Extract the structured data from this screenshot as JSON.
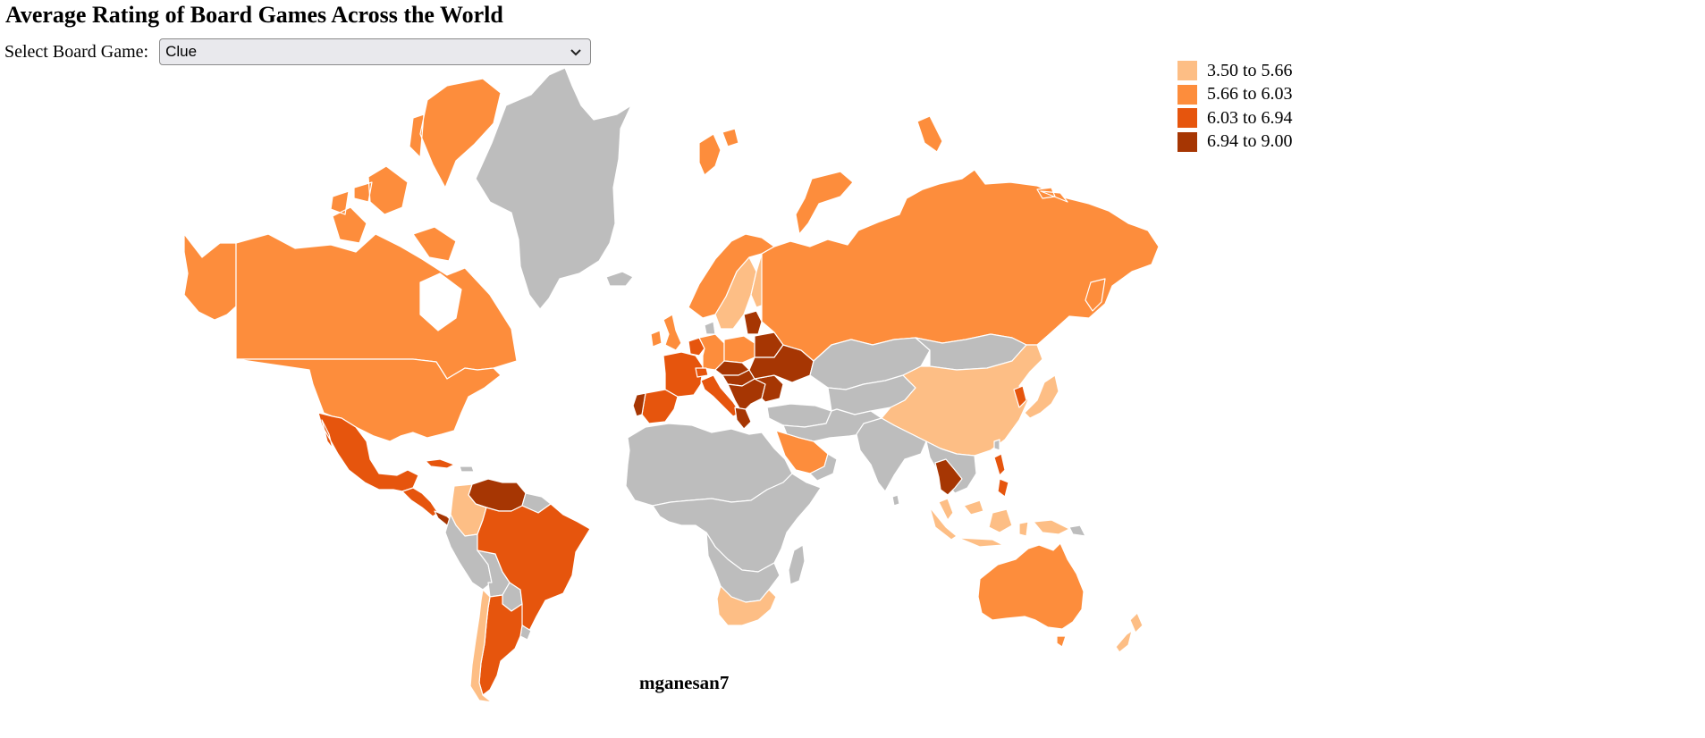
{
  "page": {
    "title": "Average Rating of Board Games Across the World",
    "select_label": "Select Board Game:",
    "selected_game": "Clue",
    "credit": "mganesan7"
  },
  "legend": [
    {
      "label": "3.50 to 5.66",
      "color": "#fdbe85"
    },
    {
      "label": "5.66 to 6.03",
      "color": "#fd8d3c"
    },
    {
      "label": "6.03 to 6.94",
      "color": "#e6550d"
    },
    {
      "label": "6.94 to 9.00",
      "color": "#a63603"
    }
  ],
  "colors": {
    "no_data": "#bdbdbd",
    "borders": "#ffffff"
  },
  "icons": {
    "dropdown": "chevron-down-icon"
  },
  "map_data": {
    "projection": "mercator",
    "bins": [
      "3.50 to 5.66",
      "5.66 to 6.03",
      "6.03 to 6.94",
      "6.94 to 9.00"
    ],
    "countries_by_bin": {
      "3.50 to 5.66": [
        "China",
        "Colombia",
        "Chile",
        "Sweden",
        "Finland",
        "South Africa",
        "Japan",
        "Indonesia",
        "Malaysia",
        "Papua New Guinea",
        "New Zealand"
      ],
      "5.66 to 6.03": [
        "Canada",
        "United States",
        "Russia",
        "Australia",
        "Norway",
        "Saudi Arabia",
        "United Kingdom",
        "Ireland",
        "Iceland",
        "Germany",
        "Poland",
        "Austria"
      ],
      "6.03 to 6.94": [
        "Mexico",
        "Brazil",
        "Argentina",
        "Spain",
        "France",
        "Italy",
        "Netherlands",
        "Belgium",
        "Switzerland",
        "Philippines",
        "South Korea",
        "Guatemala",
        "Cuba",
        "Croatia"
      ],
      "6.94 to 9.00": [
        "Venezuela",
        "Portugal",
        "Ukraine",
        "Hungary",
        "Romania",
        "Serbia",
        "Bulgaria",
        "Greece",
        "Lithuania",
        "Thailand",
        "Cambodia",
        "Czech Republic",
        "Slovakia",
        "Belarus",
        "Costa Rica",
        "Panama"
      ]
    }
  }
}
